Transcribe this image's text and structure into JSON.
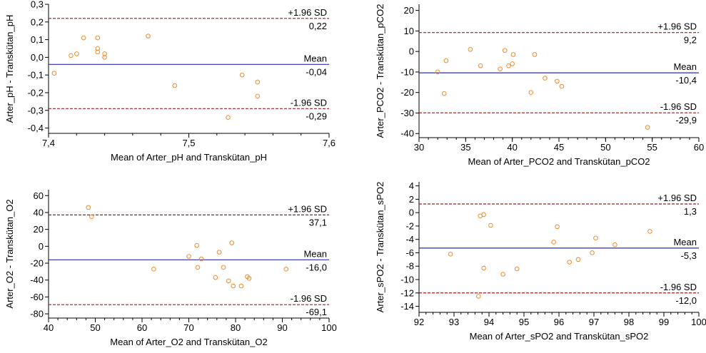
{
  "chart_data": [
    {
      "type": "scatter",
      "xlabel": "Mean of Arter_pH and Transkütan_pH",
      "ylabel": "Arter_pH - Transkütan_pH",
      "xlim": [
        7.4,
        7.6
      ],
      "ylim": [
        -0.43,
        0.3
      ],
      "x_ticks": [
        7.4,
        7.5,
        7.6
      ],
      "x_tick_labels": [
        "7,4",
        "7,5",
        "7,6"
      ],
      "y_ticks": [
        0.3,
        0.2,
        0.1,
        0.0,
        -0.1,
        -0.2,
        -0.3,
        -0.4
      ],
      "y_tick_labels": [
        "0,3",
        "0,2",
        "0,1",
        "0,0",
        "-0,1",
        "-0,2",
        "-0,3",
        "-0,4"
      ],
      "x_minor_step": 0.02,
      "points": [
        {
          "x": 7.404,
          "y": -0.09
        },
        {
          "x": 7.416,
          "y": 0.01
        },
        {
          "x": 7.42,
          "y": 0.02
        },
        {
          "x": 7.425,
          "y": 0.11
        },
        {
          "x": 7.435,
          "y": 0.11
        },
        {
          "x": 7.435,
          "y": 0.05
        },
        {
          "x": 7.435,
          "y": 0.03
        },
        {
          "x": 7.44,
          "y": 0.02
        },
        {
          "x": 7.44,
          "y": 0.0
        },
        {
          "x": 7.471,
          "y": 0.12
        },
        {
          "x": 7.49,
          "y": -0.16
        },
        {
          "x": 7.528,
          "y": -0.34
        },
        {
          "x": 7.538,
          "y": -0.1
        },
        {
          "x": 7.549,
          "y": -0.14
        },
        {
          "x": 7.549,
          "y": -0.22
        }
      ],
      "lines": [
        {
          "kind": "upper",
          "value": 0.22,
          "label": "+1.96 SD",
          "value_label": "0,22"
        },
        {
          "kind": "mean",
          "value": -0.04,
          "label": "Mean",
          "value_label": "-0,04"
        },
        {
          "kind": "lower",
          "value": -0.29,
          "label": "-1.96 SD",
          "value_label": "-0,29"
        }
      ]
    },
    {
      "type": "scatter",
      "xlabel": "Mean of Arter_PCO2 and Transkütan_pCO2",
      "ylabel": "Arter_PCO2 - Transkütan_pCO2",
      "xlim": [
        30,
        60
      ],
      "ylim": [
        -42,
        23
      ],
      "x_ticks": [
        30,
        35,
        40,
        45,
        50,
        55,
        60
      ],
      "x_tick_labels": [
        "30",
        "35",
        "40",
        "45",
        "50",
        "55",
        "60"
      ],
      "y_ticks": [
        20,
        10,
        0,
        -10,
        -20,
        -30,
        -40
      ],
      "y_tick_labels": [
        "20",
        "10",
        "0",
        "-10",
        "-20",
        "-30",
        "-40"
      ],
      "x_minor_step": 1,
      "points": [
        {
          "x": 32.0,
          "y": -10
        },
        {
          "x": 32.7,
          "y": -20.5
        },
        {
          "x": 32.9,
          "y": -4.5
        },
        {
          "x": 35.5,
          "y": 1
        },
        {
          "x": 36.6,
          "y": -7
        },
        {
          "x": 38.7,
          "y": -8.5
        },
        {
          "x": 39.2,
          "y": 0.5
        },
        {
          "x": 39.6,
          "y": -7
        },
        {
          "x": 40.0,
          "y": -6
        },
        {
          "x": 40.1,
          "y": -1.5
        },
        {
          "x": 42.0,
          "y": -20
        },
        {
          "x": 42.4,
          "y": -1.5
        },
        {
          "x": 43.5,
          "y": -13
        },
        {
          "x": 44.8,
          "y": -14.5
        },
        {
          "x": 45.3,
          "y": -17
        },
        {
          "x": 54.5,
          "y": -37
        }
      ],
      "lines": [
        {
          "kind": "upper",
          "value": 9.2,
          "label": "+1.96 SD",
          "value_label": "9,2"
        },
        {
          "kind": "mean",
          "value": -10.4,
          "label": "Mean",
          "value_label": "-10,4"
        },
        {
          "kind": "lower",
          "value": -29.9,
          "label": "-1.96 SD",
          "value_label": "-29,9"
        }
      ]
    },
    {
      "type": "scatter",
      "xlabel": "Mean of Arter_O2 and Transkütan_O2",
      "ylabel": "Arter_O2 - Transkütan_O2",
      "xlim": [
        40,
        100
      ],
      "ylim": [
        -85,
        67
      ],
      "x_ticks": [
        40,
        50,
        60,
        70,
        80,
        90,
        100
      ],
      "x_tick_labels": [
        "40",
        "50",
        "60",
        "70",
        "80",
        "90",
        "100"
      ],
      "y_ticks": [
        60,
        40,
        20,
        0,
        -20,
        -40,
        -60,
        -80
      ],
      "y_tick_labels": [
        "60",
        "40",
        "20",
        "0",
        "-20",
        "-40",
        "-60",
        "-80"
      ],
      "x_minor_step": 2,
      "points": [
        {
          "x": 48.5,
          "y": 46
        },
        {
          "x": 49.2,
          "y": 35
        },
        {
          "x": 62.5,
          "y": -27
        },
        {
          "x": 70.0,
          "y": -12
        },
        {
          "x": 71.7,
          "y": 1
        },
        {
          "x": 71.9,
          "y": -25
        },
        {
          "x": 72.7,
          "y": -15
        },
        {
          "x": 75.7,
          "y": -37
        },
        {
          "x": 76.5,
          "y": -7
        },
        {
          "x": 77.4,
          "y": -25
        },
        {
          "x": 78.5,
          "y": -41
        },
        {
          "x": 79.2,
          "y": 4
        },
        {
          "x": 79.5,
          "y": -47
        },
        {
          "x": 81.2,
          "y": -47
        },
        {
          "x": 82.5,
          "y": -36
        },
        {
          "x": 82.9,
          "y": -38
        },
        {
          "x": 90.8,
          "y": -27
        }
      ],
      "lines": [
        {
          "kind": "upper",
          "value": 37.1,
          "label": "+1.96 SD",
          "value_label": "37,1"
        },
        {
          "kind": "mean",
          "value": -16.0,
          "label": "Mean",
          "value_label": "-16,0"
        },
        {
          "kind": "lower",
          "value": -69.1,
          "label": "-1.96 SD",
          "value_label": "-69,1"
        }
      ]
    },
    {
      "type": "scatter",
      "xlabel": "Mean of Arter_sPO2 and Transkütan_sPO2",
      "ylabel": "Arter_sPO2 - Transkütan_sPO2",
      "xlim": [
        92,
        100
      ],
      "ylim": [
        -14.9,
        4.6
      ],
      "x_ticks": [
        92,
        93,
        94,
        95,
        96,
        97,
        98,
        99,
        100
      ],
      "x_tick_labels": [
        "92",
        "93",
        "94",
        "95",
        "96",
        "97",
        "98",
        "99",
        "100"
      ],
      "y_ticks": [
        4,
        2,
        0,
        -2,
        -4,
        -6,
        -8,
        -10,
        -12,
        -14
      ],
      "y_tick_labels": [
        "4",
        "2",
        "0",
        "-2",
        "-4",
        "-6",
        "-8",
        "-10",
        "-12",
        "-14"
      ],
      "x_minor_step": 0.2,
      "points": [
        {
          "x": 92.9,
          "y": -6.2
        },
        {
          "x": 93.7,
          "y": -12.5
        },
        {
          "x": 93.75,
          "y": -0.5
        },
        {
          "x": 93.85,
          "y": -0.3
        },
        {
          "x": 93.85,
          "y": -8.3
        },
        {
          "x": 94.05,
          "y": -1.9
        },
        {
          "x": 94.4,
          "y": -9.2
        },
        {
          "x": 94.8,
          "y": -8.4
        },
        {
          "x": 95.85,
          "y": -4.4
        },
        {
          "x": 95.95,
          "y": -2.1
        },
        {
          "x": 96.3,
          "y": -7.4
        },
        {
          "x": 96.55,
          "y": -7.0
        },
        {
          "x": 96.95,
          "y": -6.0
        },
        {
          "x": 97.05,
          "y": -3.8
        },
        {
          "x": 97.6,
          "y": -4.8
        },
        {
          "x": 98.6,
          "y": -2.8
        }
      ],
      "lines": [
        {
          "kind": "upper",
          "value": 1.3,
          "label": "+1.96 SD",
          "value_label": "1,3"
        },
        {
          "kind": "mean",
          "value": -5.3,
          "label": "Mean",
          "value_label": "-5,3"
        },
        {
          "kind": "lower",
          "value": -12.0,
          "label": "-1.96 SD",
          "value_label": "-12,0"
        }
      ]
    }
  ],
  "colors": {
    "mean_line": "#2b2bb0",
    "sd_line": "#9b1c1c",
    "point": "#f08a2c",
    "axis": "#000000"
  }
}
